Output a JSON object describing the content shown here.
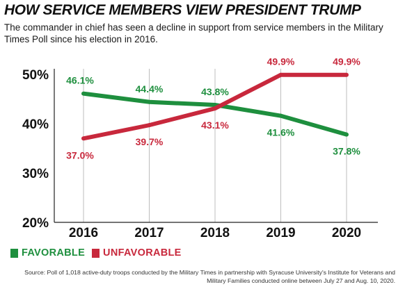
{
  "header": {
    "title": "HOW SERVICE MEMBERS VIEW PRESIDENT TRUMP",
    "subtitle": "The commander in chief has seen a decline in support from service members in the Military Times Poll since his election in 2016."
  },
  "legend": [
    {
      "label": "FAVORABLE",
      "color": "#1e8f3e"
    },
    {
      "label": "UNFAVORABLE",
      "color": "#c8283c"
    }
  ],
  "source": "Source: Poll of 1,018 active-duty troops conducted by the Military Times in partnership with Syracuse University's Institute for Veterans and Military Families conducted online between July 27 and Aug. 10, 2020.",
  "chart_data": {
    "type": "line",
    "x": [
      "2016",
      "2017",
      "2018",
      "2019",
      "2020"
    ],
    "ylim": [
      20,
      50
    ],
    "yticks": [
      20,
      30,
      40,
      50
    ],
    "ytick_labels": [
      "20%",
      "30%",
      "40%",
      "50%"
    ],
    "grid": "vertical",
    "legend_position": "bottom-left",
    "series": [
      {
        "name": "FAVORABLE",
        "color": "#1e8f3e",
        "values": [
          46.1,
          44.4,
          43.8,
          41.6,
          37.8
        ],
        "labels": [
          "46.1%",
          "44.4%",
          "43.8%",
          "41.6%",
          "37.8%"
        ]
      },
      {
        "name": "UNFAVORABLE",
        "color": "#c8283c",
        "values": [
          37.0,
          39.7,
          43.1,
          49.9,
          49.9
        ],
        "labels": [
          "37.0%",
          "39.7%",
          "43.1%",
          "49.9%",
          "49.9%"
        ]
      }
    ]
  }
}
